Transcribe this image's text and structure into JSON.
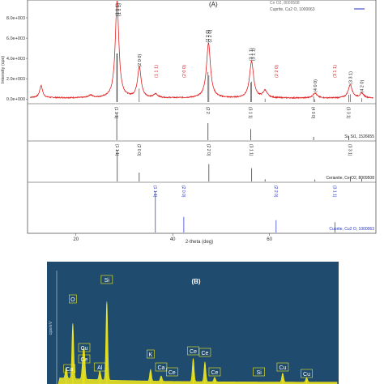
{
  "chart_data": [
    {
      "type": "line",
      "panel": "A",
      "panel_label": "(A)",
      "xlabel": "2-theta (deg)",
      "ylabel": "Intensity (cps)",
      "xlim": [
        10,
        82
      ],
      "x_ticks": [
        20,
        40,
        60
      ],
      "y_ticks": [
        {
          "value": 0,
          "label": "0.0e+000"
        },
        {
          "value": 2000,
          "label": "2.0e+003"
        },
        {
          "value": 4000,
          "label": "4.0e+003"
        },
        {
          "value": 6000,
          "label": "6.0e+003"
        },
        {
          "value": 8000,
          "label": "8.0e+003"
        }
      ],
      "ylim": [
        -300,
        9600
      ],
      "legend_entries": [
        "Cuprite, Cu2 O, 1000063"
      ],
      "top_partial_text": "Ce O2, 8009508",
      "measured_pattern": {
        "name": "",
        "color": "#e02020",
        "peaks": [
          {
            "x": 12.8,
            "y": 1200,
            "w": 0.35
          },
          {
            "x": 23.0,
            "y": 250,
            "w": 0.5
          },
          {
            "x": 28.5,
            "y": 9500,
            "w": 0.45
          },
          {
            "x": 33.1,
            "y": 3000,
            "w": 0.45
          },
          {
            "x": 36.5,
            "y": 350,
            "w": 0.5
          },
          {
            "x": 47.4,
            "y": 5400,
            "w": 0.5
          },
          {
            "x": 56.3,
            "y": 3600,
            "w": 0.5
          },
          {
            "x": 59.1,
            "y": 700,
            "w": 0.5
          },
          {
            "x": 69.4,
            "y": 500,
            "w": 0.5
          },
          {
            "x": 76.7,
            "y": 1300,
            "w": 0.5
          },
          {
            "x": 79.1,
            "y": 450,
            "w": 0.5
          }
        ]
      },
      "main_annotations": [
        {
          "x": 28.5,
          "text": "(1 1 1)",
          "color": "#222222"
        },
        {
          "x": 28.9,
          "text": "(1 1 1)",
          "color": "#222222"
        },
        {
          "x": 33.1,
          "text": "(2 0 0)",
          "color": "#222222"
        },
        {
          "x": 36.5,
          "text": "(1 1 1)",
          "color": "#d02020"
        },
        {
          "x": 42.3,
          "text": "(2 0 0)",
          "color": "#d02020"
        },
        {
          "x": 47.2,
          "text": "(2 2 0)",
          "color": "#222222"
        },
        {
          "x": 47.7,
          "text": "(2 2 0)",
          "color": "#222222"
        },
        {
          "x": 56.1,
          "text": "(3 1 1)",
          "color": "#222222"
        },
        {
          "x": 56.6,
          "text": "(3 1 1)",
          "color": "#222222"
        },
        {
          "x": 61.4,
          "text": "(2 2 0)",
          "color": "#d02020"
        },
        {
          "x": 69.4,
          "text": "(4 0 0)",
          "color": "#222222"
        },
        {
          "x": 73.5,
          "text": "(3 1 1)",
          "color": "#d02020"
        },
        {
          "x": 76.7,
          "text": "(3 3 1)",
          "color": "#222222"
        },
        {
          "x": 79.1,
          "text": "(4 2 0)",
          "color": "#222222"
        }
      ],
      "reference_patterns": [
        {
          "name": "Si, Si1, 1526655",
          "color": "#222222",
          "lines": [
            {
              "x": 28.44,
              "h": 1.0,
              "label": "(1 1 1)"
            },
            {
              "x": 47.3,
              "h": 0.62,
              "label": "(2 2"
            },
            {
              "x": 56.12,
              "h": 0.4,
              "label": "(3 1 1)"
            },
            {
              "x": 69.13,
              "h": 0.12,
              "label": "(4 0 0)"
            },
            {
              "x": 76.38,
              "h": 0.15,
              "label": "(3 3 1)"
            }
          ]
        },
        {
          "name": "Cerianite, Ce O2, 8009508",
          "color": "#222222",
          "lines": [
            {
              "x": 28.55,
              "h": 1.0,
              "label": "(1 1 1)"
            },
            {
              "x": 33.08,
              "h": 0.28,
              "label": "(2 0 0)"
            },
            {
              "x": 47.48,
              "h": 0.55,
              "label": "(2 2 0)"
            },
            {
              "x": 56.33,
              "h": 0.42,
              "label": "(3 1 1)"
            },
            {
              "x": 59.09,
              "h": 0.07,
              "label": ""
            },
            {
              "x": 69.4,
              "h": 0.06,
              "label": ""
            },
            {
              "x": 76.7,
              "h": 0.16,
              "label": "(3 3 1)"
            },
            {
              "x": 79.07,
              "h": 0.08,
              "label": ""
            }
          ]
        },
        {
          "name": "Cuprite, Cu2 O, 1000063",
          "color": "#2030c8",
          "lines": [
            {
              "x": 36.42,
              "h": 1.0,
              "label": "(1 1 1)"
            },
            {
              "x": 42.3,
              "h": 0.38,
              "label": "(2 0 0)"
            },
            {
              "x": 61.38,
              "h": 0.3,
              "label": "(2 2 0)"
            },
            {
              "x": 73.53,
              "h": 0.25,
              "label": "(3 1 1)"
            }
          ]
        }
      ]
    },
    {
      "type": "bar",
      "panel": "B",
      "panel_label": "(B)",
      "ylabel": "cps/eV",
      "bg_color": "#1f4b6e",
      "line_color": "#f2ea1c",
      "peaks": [
        {
          "label": "C",
          "x": 0.28,
          "h": 0.12
        },
        {
          "label": "O",
          "x": 0.52,
          "h": 0.62
        },
        {
          "label": "Cu",
          "x": 0.93,
          "h": 0.28
        },
        {
          "label": "Ce",
          "x": 0.88,
          "h": 0.2
        },
        {
          "label": "Al",
          "x": 1.49,
          "h": 0.1
        },
        {
          "label": "Si",
          "x": 1.74,
          "h": 0.88
        },
        {
          "label": "K",
          "x": 3.31,
          "h": 0.13
        },
        {
          "label": "Ca",
          "x": 3.69,
          "h": 0.06
        },
        {
          "label": "Ce",
          "x": 4.84,
          "h": 0.26
        },
        {
          "label": "Ce",
          "x": 5.26,
          "h": 0.22
        },
        {
          "label": "Ce",
          "x": 5.61,
          "h": 0.05
        },
        {
          "label": "Cu",
          "x": 8.05,
          "h": 0.1
        },
        {
          "label": "Cu",
          "x": 8.91,
          "h": 0.05
        }
      ],
      "element_labels": [
        {
          "text": "O",
          "x": 0.52
        },
        {
          "text": "Si",
          "x": 1.74
        },
        {
          "text": "Cu",
          "x": 0.93
        },
        {
          "text": "Ce",
          "x": 0.93
        },
        {
          "text": "Ca",
          "x": 0.4
        },
        {
          "text": "Al",
          "x": 1.49
        },
        {
          "text": "K",
          "x": 3.31
        },
        {
          "text": "Ca",
          "x": 3.69
        },
        {
          "text": "Ce",
          "x": 4.08
        },
        {
          "text": "Ce",
          "x": 4.84
        },
        {
          "text": "Ce",
          "x": 5.26
        },
        {
          "text": "Ce",
          "x": 5.61
        },
        {
          "text": "Cu",
          "x": 8.05
        },
        {
          "text": "Cu",
          "x": 8.91
        },
        {
          "text": "Si",
          "x": 7.2
        }
      ],
      "xlim": [
        0,
        10
      ]
    }
  ]
}
